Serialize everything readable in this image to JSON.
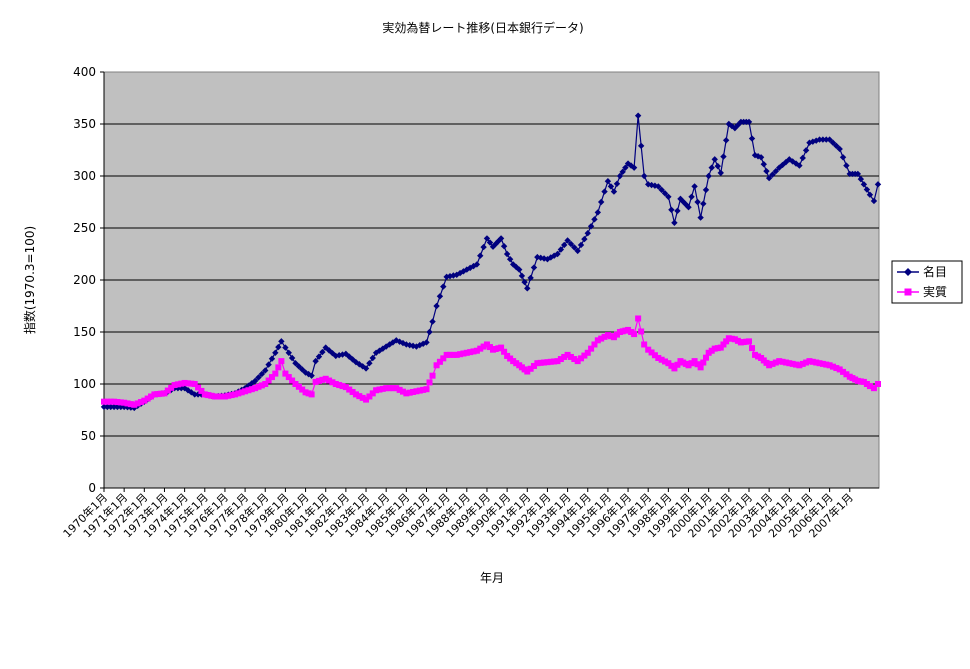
{
  "chart_data": {
    "type": "line",
    "title": "実効為替レート推移(日本銀行データ)",
    "xlabel": "年月",
    "ylabel": "指数(1970.3=100)",
    "ylim": [
      0,
      400
    ],
    "yticks": [
      0,
      50,
      100,
      150,
      200,
      250,
      300,
      350,
      400
    ],
    "categories": [
      "1970年1月",
      "1971年1月",
      "1972年1月",
      "1973年1月",
      "1974年1月",
      "1975年1月",
      "1976年1月",
      "1977年1月",
      "1978年1月",
      "1979年1月",
      "1980年1月",
      "1981年1月",
      "1982年1月",
      "1983年1月",
      "1984年1月",
      "1985年1月",
      "1986年1月",
      "1987年1月",
      "1988年1月",
      "1989年1月",
      "1990年1月",
      "1991年1月",
      "1992年1月",
      "1993年1月",
      "1994年1月",
      "1995年1月",
      "1996年1月",
      "1997年1月",
      "1998年1月",
      "1999年1月",
      "2000年1月",
      "2001年1月",
      "2002年1月",
      "2003年1月",
      "2004年1月",
      "2005年1月",
      "2006年1月",
      "2007年1月"
    ],
    "x": [
      1970.0,
      1970.5,
      1971.0,
      1971.5,
      1972.0,
      1972.5,
      1973.0,
      1973.5,
      1974.0,
      1974.5,
      1975.0,
      1975.5,
      1976.0,
      1976.5,
      1977.0,
      1977.5,
      1978.0,
      1978.5,
      1978.8,
      1979.0,
      1979.5,
      1980.0,
      1980.3,
      1980.5,
      1981.0,
      1981.5,
      1982.0,
      1982.5,
      1983.0,
      1983.5,
      1984.0,
      1984.5,
      1985.0,
      1985.5,
      1986.0,
      1986.3,
      1986.5,
      1987.0,
      1987.5,
      1988.0,
      1988.5,
      1989.0,
      1989.3,
      1989.7,
      1990.0,
      1990.3,
      1990.6,
      1991.0,
      1991.5,
      1992.0,
      1992.5,
      1993.0,
      1993.5,
      1994.0,
      1994.5,
      1995.0,
      1995.3,
      1995.6,
      1996.0,
      1996.3,
      1996.5,
      1996.8,
      1997.0,
      1997.5,
      1998.0,
      1998.3,
      1998.6,
      1999.0,
      1999.3,
      1999.6,
      2000.0,
      2000.3,
      2000.6,
      2001.0,
      2001.3,
      2001.6,
      2002.0,
      2002.3,
      2002.6,
      2003.0,
      2003.5,
      2004.0,
      2004.5,
      2005.0,
      2005.5,
      2006.0,
      2006.5,
      2007.0,
      2007.4,
      2007.7,
      2008.0,
      2008.2,
      2008.4
    ],
    "legend_position": "right",
    "grid": true,
    "series": [
      {
        "name": "名目",
        "color": "#00007f",
        "marker": "diamond",
        "values": [
          78,
          78,
          78,
          77,
          83,
          90,
          91,
          96,
          96,
          90,
          90,
          88,
          89,
          91,
          96,
          103,
          113,
          130,
          141,
          135,
          120,
          111,
          108,
          122,
          135,
          127,
          129,
          121,
          115,
          130,
          136,
          142,
          138,
          136,
          140,
          160,
          175,
          203,
          205,
          210,
          215,
          240,
          232,
          240,
          225,
          215,
          210,
          192,
          222,
          220,
          225,
          238,
          228,
          245,
          265,
          295,
          285,
          300,
          312,
          308,
          358,
          300,
          292,
          290,
          280,
          255,
          278,
          270,
          290,
          260,
          300,
          316,
          303,
          350,
          346,
          352,
          352,
          320,
          318,
          298,
          308,
          316,
          310,
          332,
          335,
          335,
          326,
          302,
          302,
          292,
          282,
          276,
          292
        ],
        "marker_every_step": true
      },
      {
        "name": "実質",
        "color": "#ff00ff",
        "marker": "square",
        "values": [
          83,
          83,
          82,
          80,
          84,
          90,
          91,
          99,
          101,
          100,
          90,
          88,
          88,
          90,
          93,
          96,
          100,
          110,
          122,
          110,
          100,
          92,
          90,
          102,
          105,
          100,
          97,
          90,
          85,
          94,
          96,
          96,
          91,
          93,
          95,
          108,
          118,
          128,
          128,
          130,
          132,
          138,
          133,
          135,
          127,
          122,
          118,
          112,
          120,
          121,
          122,
          128,
          122,
          130,
          142,
          147,
          145,
          150,
          152,
          148,
          163,
          138,
          133,
          125,
          120,
          115,
          122,
          118,
          122,
          116,
          130,
          134,
          135,
          144,
          143,
          140,
          141,
          128,
          125,
          118,
          122,
          120,
          118,
          122,
          120,
          118,
          114,
          107,
          103,
          102,
          98,
          96,
          100
        ]
      }
    ]
  }
}
